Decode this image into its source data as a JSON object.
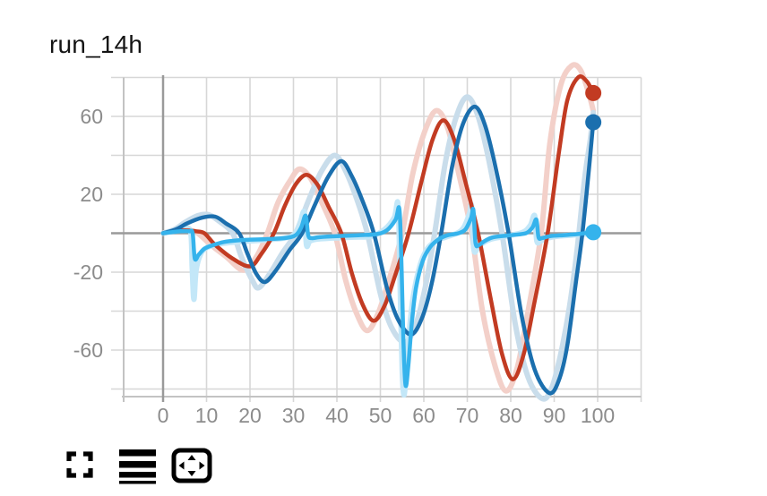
{
  "header": {
    "title": "run_14h"
  },
  "chart_data": {
    "type": "line",
    "title": "run_14h",
    "x_axis": {
      "tick_labels": [
        0,
        10,
        20,
        30,
        40,
        50,
        60,
        70,
        80,
        90,
        100
      ],
      "range": [
        -9,
        110
      ],
      "gridline_step": 10
    },
    "y_axis": {
      "tick_labels": [
        60,
        20,
        -20,
        -60
      ],
      "range": [
        -84,
        84
      ],
      "gridline_step": 20
    },
    "grid": true,
    "legend": "none",
    "colors": {
      "grid": "#d7d7d7",
      "axis_edge": "#c3c3c3",
      "zero_line": "#9a9a9a",
      "tick_label": "#8c8c8c",
      "title": "#141414"
    },
    "series": [
      {
        "name": "red-original",
        "role": "unsmoothed-halo",
        "color": "#f3d0c9",
        "width": 6,
        "points": [
          [
            0,
            0
          ],
          [
            3,
            1.5
          ],
          [
            6,
            1.5
          ],
          [
            8,
            0
          ],
          [
            11,
            -6
          ],
          [
            14.5,
            -12
          ],
          [
            18.5,
            -19
          ],
          [
            21.5,
            -12
          ],
          [
            24,
            0
          ],
          [
            26.5,
            16
          ],
          [
            29.5,
            28
          ],
          [
            31.5,
            33
          ],
          [
            34,
            28
          ],
          [
            36.5,
            16
          ],
          [
            39.5,
            0
          ],
          [
            42,
            -24
          ],
          [
            44.5,
            -41
          ],
          [
            47,
            -50
          ],
          [
            49.5,
            -41
          ],
          [
            52,
            -24
          ],
          [
            55,
            0
          ],
          [
            57.5,
            31
          ],
          [
            60.5,
            54
          ],
          [
            63,
            63
          ],
          [
            65.5,
            54
          ],
          [
            68,
            31
          ],
          [
            71,
            0
          ],
          [
            73.5,
            -40
          ],
          [
            76.5,
            -69
          ],
          [
            79,
            -81
          ],
          [
            81.5,
            -69
          ],
          [
            84,
            -40
          ],
          [
            87,
            0
          ],
          [
            89,
            46
          ],
          [
            91.5,
            76
          ],
          [
            94,
            86
          ],
          [
            96,
            84
          ],
          [
            97.8,
            73
          ],
          [
            99,
            63
          ]
        ]
      },
      {
        "name": "blue-original",
        "role": "unsmoothed-halo",
        "color": "#c9ddeb",
        "width": 6,
        "points": [
          [
            0,
            0
          ],
          [
            2.7,
            2
          ],
          [
            5,
            5.5
          ],
          [
            8,
            9
          ],
          [
            10.5,
            9.5
          ],
          [
            13,
            6
          ],
          [
            16,
            0
          ],
          [
            18,
            -12
          ],
          [
            20.5,
            -24
          ],
          [
            22,
            -28
          ],
          [
            24.5,
            -21
          ],
          [
            27.5,
            -10
          ],
          [
            30.5,
            0
          ],
          [
            33.5,
            17
          ],
          [
            36.5,
            32
          ],
          [
            39.5,
            40
          ],
          [
            42,
            32
          ],
          [
            44.5,
            18
          ],
          [
            47,
            0
          ],
          [
            50,
            -31
          ],
          [
            52.5,
            -48
          ],
          [
            55.5,
            -56
          ],
          [
            58,
            -48
          ],
          [
            60.3,
            -28
          ],
          [
            62.5,
            0
          ],
          [
            65,
            37
          ],
          [
            67.5,
            60
          ],
          [
            70,
            70
          ],
          [
            72.5,
            60
          ],
          [
            75,
            37
          ],
          [
            78,
            0
          ],
          [
            81,
            -46
          ],
          [
            84,
            -74
          ],
          [
            87.3,
            -85
          ],
          [
            89.5,
            -79
          ],
          [
            91.5,
            -62
          ],
          [
            93.5,
            -38
          ],
          [
            95.3,
            -8
          ],
          [
            97,
            28
          ],
          [
            98.3,
            48
          ],
          [
            99,
            62
          ]
        ]
      },
      {
        "name": "lightblue-original",
        "role": "unsmoothed-halo",
        "color": "#c3e7f8",
        "width": 6,
        "points": [
          [
            0,
            0
          ],
          [
            2,
            1
          ],
          [
            4.5,
            1.5
          ],
          [
            6.3,
            1
          ],
          [
            6.7,
            -18
          ],
          [
            7.1,
            -34
          ],
          [
            7.6,
            -19
          ],
          [
            8.6,
            -11
          ],
          [
            10,
            -7.5
          ],
          [
            13,
            -5.5
          ],
          [
            17,
            -4.5
          ],
          [
            23,
            -3.5
          ],
          [
            28,
            -2.5
          ],
          [
            30.2,
            -0.5
          ],
          [
            31.4,
            4
          ],
          [
            32.5,
            11
          ],
          [
            33,
            -6
          ],
          [
            33.8,
            -4
          ],
          [
            35.5,
            -3
          ],
          [
            39,
            -2.5
          ],
          [
            44,
            -2
          ],
          [
            48,
            -1.5
          ],
          [
            51,
            2
          ],
          [
            53.2,
            8
          ],
          [
            54.1,
            14
          ],
          [
            54.6,
            -32
          ],
          [
            55,
            -70
          ],
          [
            55.4,
            -83
          ],
          [
            55.9,
            -74
          ],
          [
            56.6,
            -52
          ],
          [
            57.6,
            -32
          ],
          [
            59.2,
            -16
          ],
          [
            60.8,
            -8
          ],
          [
            62.8,
            -4
          ],
          [
            65,
            -2
          ],
          [
            67.6,
            0
          ],
          [
            69.2,
            3
          ],
          [
            70.5,
            10
          ],
          [
            71,
            14
          ],
          [
            71.5,
            -8
          ],
          [
            72.3,
            -8
          ],
          [
            73.6,
            -5
          ],
          [
            75.5,
            -3
          ],
          [
            79,
            -1.5
          ],
          [
            82.8,
            0.5
          ],
          [
            84.5,
            4
          ],
          [
            85.5,
            9
          ],
          [
            86,
            -4
          ],
          [
            86.8,
            -4
          ],
          [
            88.5,
            -2.5
          ],
          [
            91,
            -1.5
          ],
          [
            94,
            -1
          ],
          [
            97,
            -0.5
          ],
          [
            99,
            0.5
          ]
        ]
      },
      {
        "name": "red-smoothed",
        "role": "smoothed",
        "color": "#c23b22",
        "width": 4.5,
        "points": [
          [
            0,
            0
          ],
          [
            2.5,
            1
          ],
          [
            5,
            1.5
          ],
          [
            7.5,
            1
          ],
          [
            9.5,
            0
          ],
          [
            12,
            -6
          ],
          [
            16,
            -13
          ],
          [
            20,
            -17
          ],
          [
            22.5,
            -11
          ],
          [
            25.5,
            0
          ],
          [
            28,
            14
          ],
          [
            30.5,
            25
          ],
          [
            33,
            30
          ],
          [
            35.5,
            25
          ],
          [
            38,
            14
          ],
          [
            41,
            0
          ],
          [
            43.5,
            -21
          ],
          [
            46,
            -37
          ],
          [
            48.5,
            -45
          ],
          [
            51,
            -37
          ],
          [
            53.5,
            -21
          ],
          [
            56.5,
            0
          ],
          [
            59.5,
            27
          ],
          [
            62,
            48
          ],
          [
            64.5,
            58
          ],
          [
            67,
            48
          ],
          [
            69.5,
            27
          ],
          [
            72.5,
            0
          ],
          [
            75.5,
            -35
          ],
          [
            78,
            -62
          ],
          [
            80.5,
            -75
          ],
          [
            83,
            -62
          ],
          [
            85.5,
            -35
          ],
          [
            88.5,
            0
          ],
          [
            91,
            40
          ],
          [
            93,
            68
          ],
          [
            95.5,
            80
          ],
          [
            97.5,
            78
          ],
          [
            99,
            72
          ]
        ]
      },
      {
        "name": "blue-smoothed",
        "role": "smoothed",
        "color": "#1b6fae",
        "width": 4.5,
        "points": [
          [
            0,
            0
          ],
          [
            3,
            2
          ],
          [
            5.5,
            5
          ],
          [
            9,
            8
          ],
          [
            12,
            8.5
          ],
          [
            14.5,
            5
          ],
          [
            17.5,
            0
          ],
          [
            19.5,
            -11
          ],
          [
            21.5,
            -21
          ],
          [
            23.5,
            -25
          ],
          [
            26,
            -19
          ],
          [
            29,
            -9
          ],
          [
            32,
            0
          ],
          [
            35,
            15
          ],
          [
            38,
            29
          ],
          [
            41,
            37
          ],
          [
            43.5,
            29
          ],
          [
            46,
            16
          ],
          [
            48.5,
            0
          ],
          [
            51.5,
            -28
          ],
          [
            54,
            -44
          ],
          [
            57,
            -52
          ],
          [
            59.5,
            -44
          ],
          [
            61.8,
            -26
          ],
          [
            64,
            0
          ],
          [
            66.5,
            34
          ],
          [
            69,
            56
          ],
          [
            71.7,
            65
          ],
          [
            74,
            56
          ],
          [
            76.5,
            34
          ],
          [
            79.5,
            0
          ],
          [
            82.5,
            -42
          ],
          [
            85.5,
            -70
          ],
          [
            88.8,
            -82
          ],
          [
            91,
            -76
          ],
          [
            93,
            -58
          ],
          [
            95,
            -25
          ],
          [
            96.5,
            0
          ],
          [
            98,
            33
          ],
          [
            99,
            57
          ]
        ]
      },
      {
        "name": "lightblue-smoothed",
        "role": "smoothed",
        "color": "#35b3ec",
        "width": 4.5,
        "points": [
          [
            0,
            0
          ],
          [
            2,
            0.5
          ],
          [
            4,
            1
          ],
          [
            6,
            1
          ],
          [
            6.8,
            0
          ],
          [
            7.3,
            -13
          ],
          [
            8.2,
            -11
          ],
          [
            9.5,
            -8
          ],
          [
            11,
            -6.5
          ],
          [
            14,
            -4.5
          ],
          [
            18,
            -3.5
          ],
          [
            24,
            -3
          ],
          [
            28,
            -2.5
          ],
          [
            30.5,
            -1
          ],
          [
            31.8,
            3
          ],
          [
            32.8,
            9
          ],
          [
            33.4,
            -1
          ],
          [
            34.2,
            -2.5
          ],
          [
            36,
            -2
          ],
          [
            40,
            -1.5
          ],
          [
            45,
            -1
          ],
          [
            49,
            -0.5
          ],
          [
            51.5,
            1.5
          ],
          [
            53.5,
            7
          ],
          [
            54.4,
            12
          ],
          [
            54.9,
            -20
          ],
          [
            55.3,
            -55
          ],
          [
            55.8,
            -78
          ],
          [
            56.4,
            -69
          ],
          [
            57.2,
            -47
          ],
          [
            58.2,
            -28
          ],
          [
            59.8,
            -14
          ],
          [
            61.5,
            -7
          ],
          [
            63.5,
            -3
          ],
          [
            65.5,
            -1
          ],
          [
            68,
            0
          ],
          [
            69.6,
            2
          ],
          [
            70.9,
            8
          ],
          [
            71.4,
            12
          ],
          [
            71.9,
            -5
          ],
          [
            72.7,
            -6
          ],
          [
            74,
            -4
          ],
          [
            76,
            -2
          ],
          [
            80,
            -1
          ],
          [
            83.5,
            0
          ],
          [
            85,
            3
          ],
          [
            85.9,
            7
          ],
          [
            86.4,
            -2
          ],
          [
            87.2,
            -2.5
          ],
          [
            89,
            -1.5
          ],
          [
            92,
            -1
          ],
          [
            95,
            -0.5
          ],
          [
            97,
            0
          ],
          [
            99,
            0.5
          ]
        ]
      }
    ],
    "end_markers": [
      {
        "series": "red-smoothed",
        "x": 99,
        "value": 72,
        "color": "#c23b22",
        "radius": 9
      },
      {
        "series": "blue-smoothed",
        "x": 99,
        "value": 57,
        "color": "#1b6fae",
        "radius": 9
      },
      {
        "series": "lightblue-smoothed",
        "x": 99,
        "value": 0.5,
        "color": "#35b3ec",
        "radius": 9
      }
    ]
  },
  "toolbar": {
    "icon_color": "#2589e5",
    "buttons": [
      {
        "name": "fullscreen",
        "icon": "fullscreen-icon"
      },
      {
        "name": "view-data",
        "icon": "horizontal-lines-icon"
      },
      {
        "name": "fit-to-view",
        "icon": "fit-to-screen-icon"
      }
    ]
  }
}
